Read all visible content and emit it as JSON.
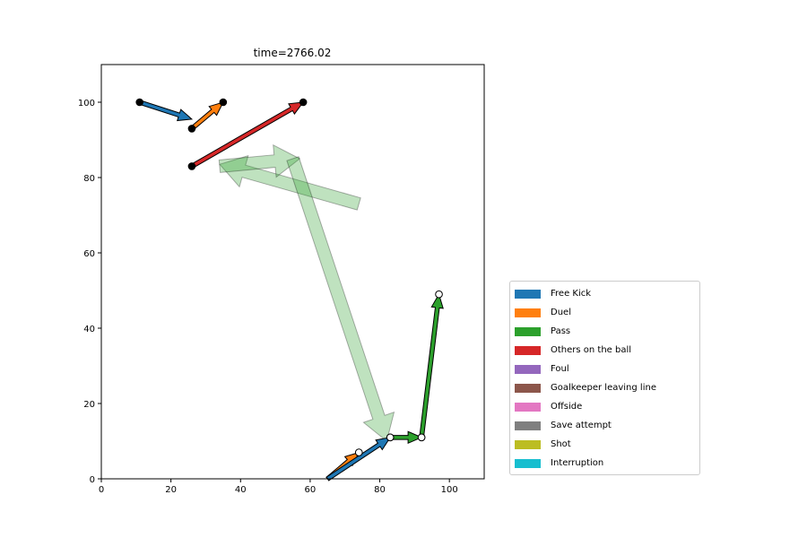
{
  "chart_data": {
    "type": "scatter",
    "title": "time=2766.02",
    "xlim": [
      0,
      110
    ],
    "ylim": [
      0,
      110
    ],
    "xticks": [
      0,
      20,
      40,
      60,
      80,
      100
    ],
    "yticks": [
      0,
      20,
      40,
      60,
      80,
      100
    ],
    "grid": false,
    "legend_placement": "lower right, outside plot",
    "legend": [
      {
        "label": "Free Kick",
        "color": "#1f77b4"
      },
      {
        "label": "Duel",
        "color": "#ff7f0e"
      },
      {
        "label": "Pass",
        "color": "#2ca02c"
      },
      {
        "label": "Others on the ball",
        "color": "#d62728"
      },
      {
        "label": "Foul",
        "color": "#9467bd"
      },
      {
        "label": "Goalkeeper leaving line",
        "color": "#8c564b"
      },
      {
        "label": "Offside",
        "color": "#e377c2"
      },
      {
        "label": "Save attempt",
        "color": "#7f7f7f"
      },
      {
        "label": "Shot",
        "color": "#bcbd22"
      },
      {
        "label": "Interruption",
        "color": "#17becf"
      }
    ],
    "events": [
      {
        "type": "Free Kick",
        "color": "#1f77b4",
        "from": [
          11,
          100
        ],
        "to": [
          26,
          95.5
        ],
        "start_marker": "filled",
        "end_marker": "none"
      },
      {
        "type": "Duel",
        "color": "#ff7f0e",
        "from": [
          26,
          93
        ],
        "to": [
          35,
          100
        ],
        "start_marker": "filled",
        "end_marker": "filled"
      },
      {
        "type": "Others on the ball",
        "color": "#d62728",
        "from": [
          26,
          83
        ],
        "to": [
          58,
          100
        ],
        "start_marker": "filled",
        "end_marker": "filled"
      },
      {
        "type": "Duel",
        "color": "#ff7f0e",
        "from": [
          65,
          0
        ],
        "to": [
          74,
          7
        ],
        "start_marker": "none",
        "end_marker": "hollow"
      },
      {
        "type": "Free Kick",
        "color": "#1f77b4",
        "from": [
          65,
          0
        ],
        "to": [
          83,
          11
        ],
        "start_marker": "none",
        "end_marker": "hollow"
      },
      {
        "type": "Pass",
        "color": "#2ca02c",
        "from": [
          83,
          11
        ],
        "to": [
          92,
          11
        ],
        "start_marker": "hollow",
        "end_marker": "hollow"
      },
      {
        "type": "Pass",
        "color": "#2ca02c",
        "from": [
          92,
          11
        ],
        "to": [
          97,
          49
        ],
        "start_marker": "hollow",
        "end_marker": "hollow"
      }
    ],
    "faded_events": [
      {
        "type": "Pass",
        "color": "#2ca02c",
        "from": [
          74,
          73
        ],
        "to": [
          34,
          83.5
        ]
      },
      {
        "type": "Pass",
        "color": "#2ca02c",
        "from": [
          34,
          83
        ],
        "to": [
          57,
          85
        ]
      },
      {
        "type": "Pass",
        "color": "#2ca02c",
        "from": [
          55,
          85
        ],
        "to": [
          82,
          10
        ]
      }
    ]
  }
}
